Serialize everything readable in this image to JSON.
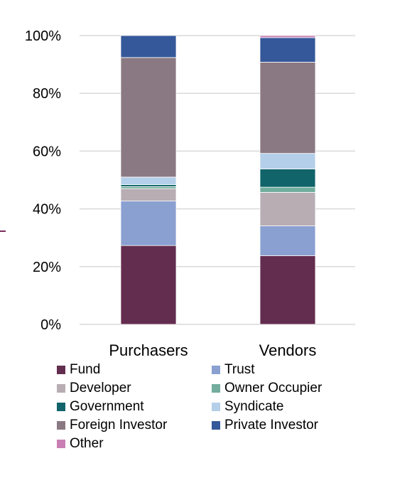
{
  "chart_data": {
    "type": "bar",
    "stacked": true,
    "categories": [
      "Purchasers",
      "Vendors"
    ],
    "y_ticks": [
      "0%",
      "20%",
      "40%",
      "60%",
      "80%",
      "100%"
    ],
    "ylim": [
      0,
      100
    ],
    "grid": true,
    "legend_position": "bottom",
    "series": [
      {
        "name": "Fund",
        "color": "#632d4f",
        "values": [
          27.3,
          23.8
        ]
      },
      {
        "name": "Trust",
        "color": "#8aa0d1",
        "values": [
          15.4,
          10.3
        ]
      },
      {
        "name": "Developer",
        "color": "#b7adb3",
        "values": [
          4.3,
          11.6
        ]
      },
      {
        "name": "Owner Occupier",
        "color": "#72ad9d",
        "values": [
          0.7,
          1.8
        ]
      },
      {
        "name": "Government",
        "color": "#11646a",
        "values": [
          0.7,
          6.3
        ]
      },
      {
        "name": "Syndicate",
        "color": "#b4cfe9",
        "values": [
          2.6,
          5.4
        ]
      },
      {
        "name": "Foreign Investor",
        "color": "#8a7982",
        "values": [
          41.4,
          31.6
        ]
      },
      {
        "name": "Private Investor",
        "color": "#35589a",
        "values": [
          7.6,
          8.5
        ]
      },
      {
        "name": "Other",
        "color": "#c97fb3",
        "values": [
          0.0,
          0.7
        ]
      }
    ]
  }
}
